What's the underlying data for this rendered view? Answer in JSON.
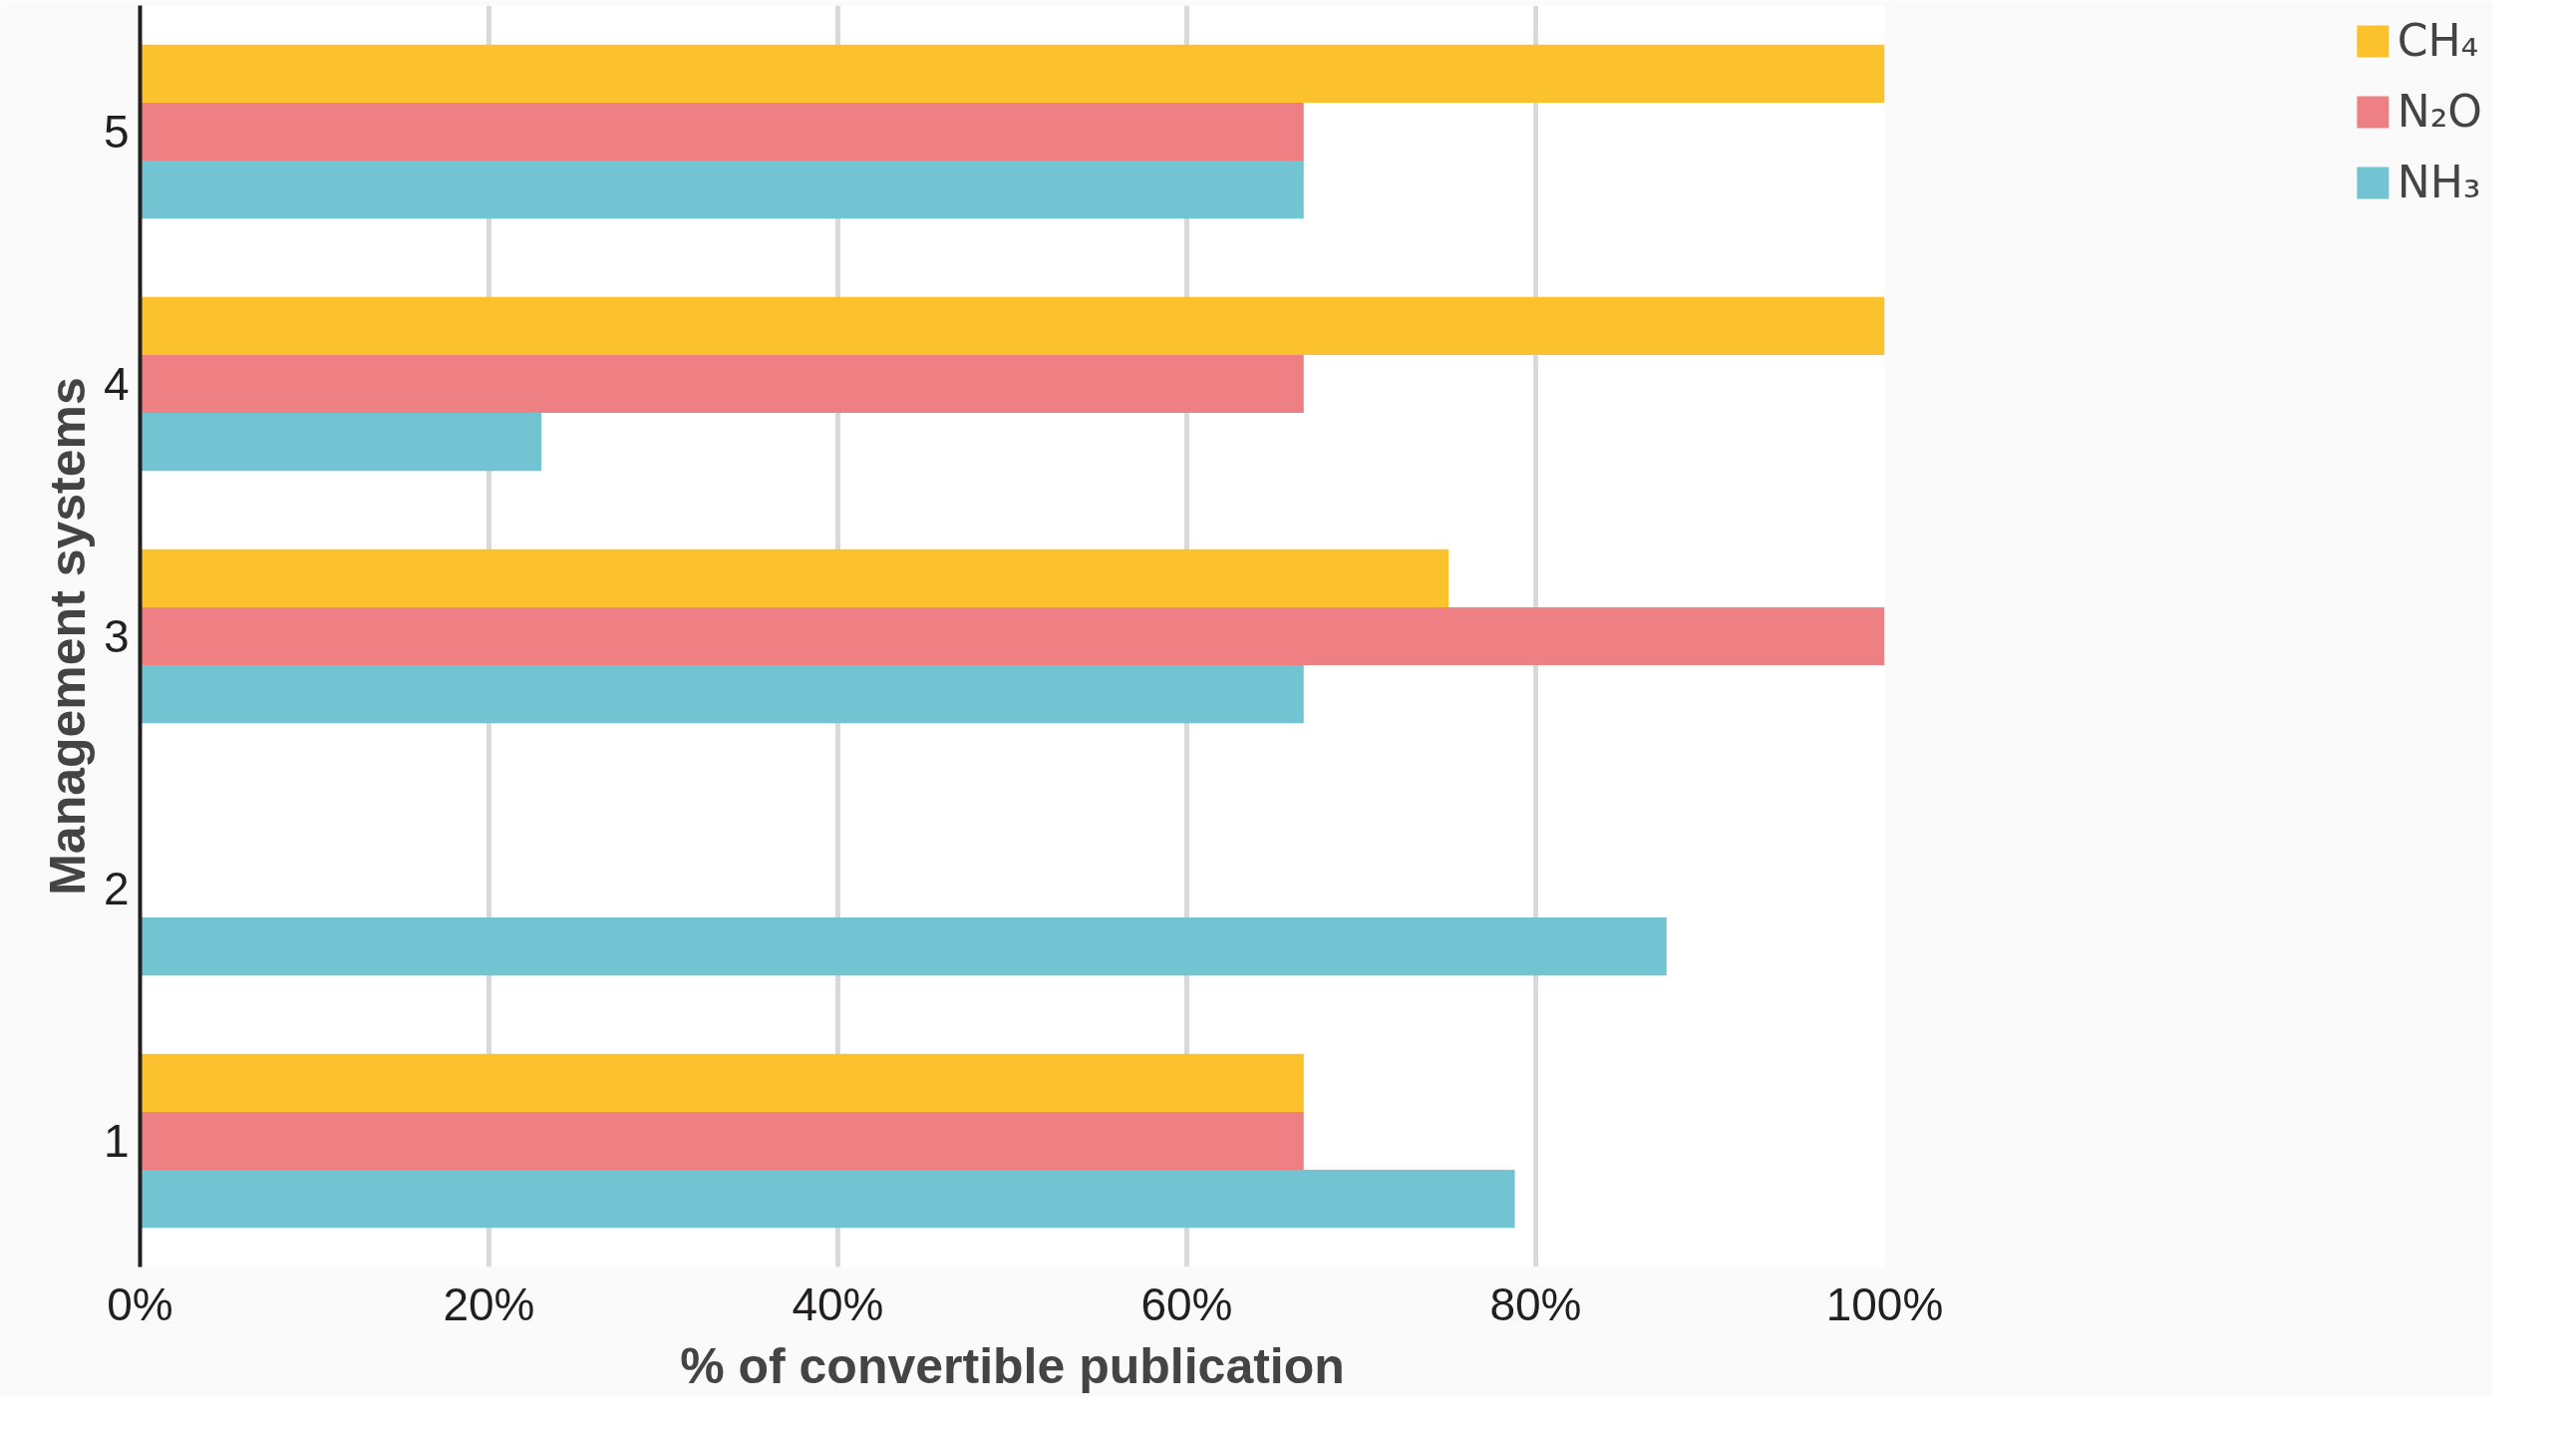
{
  "chart_data": {
    "type": "bar",
    "orientation": "horizontal",
    "xlabel": "% of convertible publication",
    "ylabel": "Management systems",
    "categories": [
      "5",
      "4",
      "3",
      "2",
      "1"
    ],
    "series": [
      {
        "name": "CH₄",
        "color": "#fbc22e",
        "values": [
          100,
          100,
          75,
          null,
          66.7
        ]
      },
      {
        "name": "N₂O",
        "color": "#ee8083",
        "values": [
          66.7,
          66.7,
          100,
          null,
          66.7
        ]
      },
      {
        "name": "NH₃",
        "color": "#72c4d2",
        "values": [
          66.7,
          23,
          66.7,
          87.5,
          78.8
        ]
      }
    ],
    "xlim": [
      0,
      100
    ],
    "xticks": [
      {
        "value": 0,
        "label": "0%"
      },
      {
        "value": 20,
        "label": "20%"
      },
      {
        "value": 40,
        "label": "40%"
      },
      {
        "value": 60,
        "label": "60%"
      },
      {
        "value": 80,
        "label": "80%"
      },
      {
        "value": 100,
        "label": "100%"
      }
    ],
    "grid": "x",
    "legend": "right"
  }
}
